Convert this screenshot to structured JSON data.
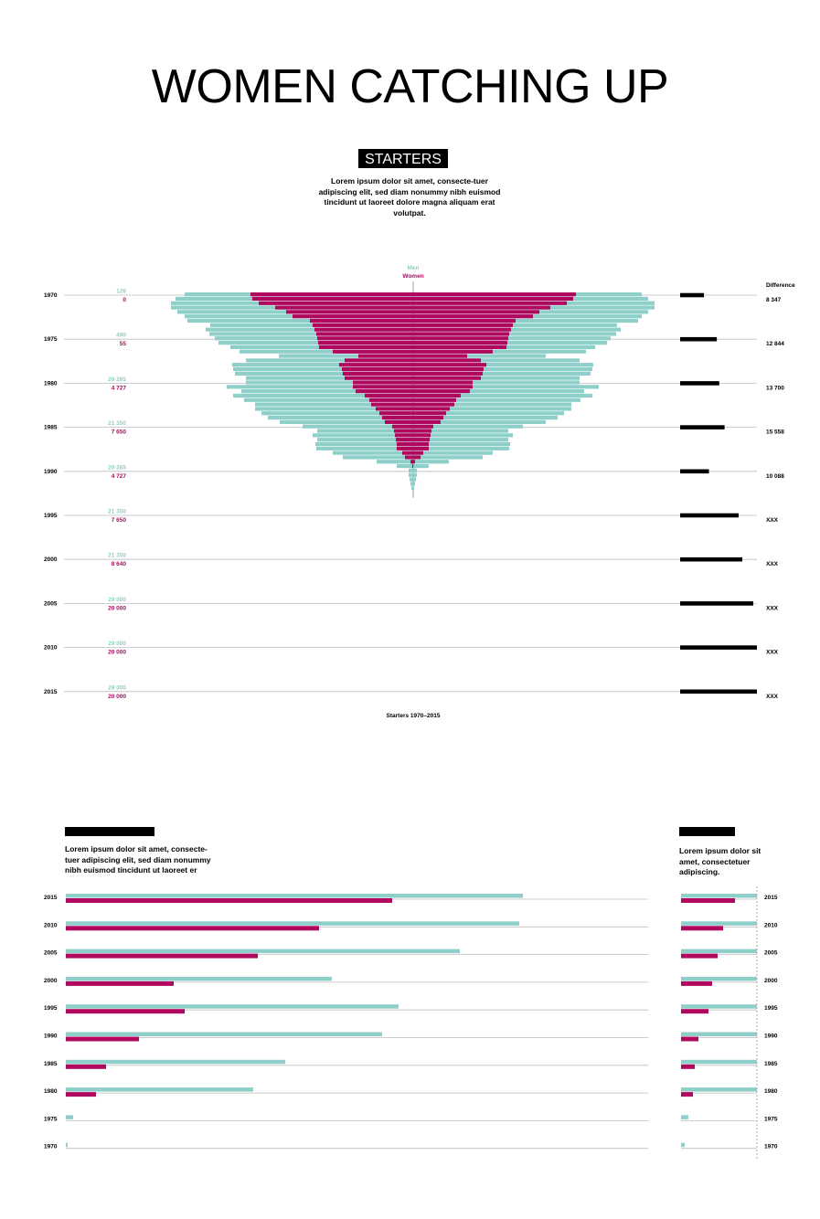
{
  "title": "WOMEN CATCHING UP",
  "starters": {
    "label": "STARTERS",
    "intro": "Lorem ipsum dolor sit amet, consecte-tuer adipiscing elit, sed diam nonummy nibh euismod tincidunt ut laoreet dolore magna aliquam erat volutpat.",
    "legend_men": "Men",
    "legend_women": "Women",
    "difference_header": "Difference",
    "caption": "Starters 1970–2015"
  },
  "colors": {
    "men": "#8ecfc9",
    "women": "#b0085f",
    "rule": "#bdbdbd",
    "ink": "#000000"
  },
  "lower": {
    "left_text": "Lorem ipsum dolor sit amet, consecte-tuer adipiscing elit, sed diam nonummy nibh euismod tincidunt ut laoreet er",
    "right_text": "Lorem ipsum dolor sit amet, consectetuer adipiscing."
  },
  "chart_data": [
    {
      "type": "bar",
      "orientation": "butterfly",
      "ylabel": "",
      "year_ticks": [
        "1970",
        "1975",
        "1980",
        "1985",
        "1990",
        "1995",
        "2000",
        "2005",
        "2010",
        "2015"
      ],
      "year_labels": [
        {
          "year": "1970",
          "men": "126",
          "women": "0",
          "difference": "8 347"
        },
        {
          "year": "1975",
          "men": "490",
          "women": "55",
          "difference": "12 844"
        },
        {
          "year": "1980",
          "men": "20 285",
          "women": "4 727",
          "difference": "13 700"
        },
        {
          "year": "1985",
          "men": "21 350",
          "women": "7 650",
          "difference": "15 558"
        },
        {
          "year": "1990",
          "men": "20 285",
          "women": "4 727",
          "difference": "10 088"
        },
        {
          "year": "1995",
          "men": "21 350",
          "women": "7 650",
          "difference": "XXX"
        },
        {
          "year": "2000",
          "men": "21 350",
          "women": "8 640",
          "difference": "XXX"
        },
        {
          "year": "2005",
          "men": "29 000",
          "women": "20 000",
          "difference": "XXX"
        },
        {
          "year": "2010",
          "men": "29 000",
          "women": "20 000",
          "difference": "XXX"
        },
        {
          "year": "2015",
          "men": "29 000",
          "women": "20 000",
          "difference": "XXX"
        }
      ],
      "series": [
        {
          "name": "Men",
          "values": [
            [
              250,
              250
            ],
            [
              260,
              257
            ],
            [
              265,
              264
            ],
            [
              265,
              264
            ],
            [
              258,
              257
            ],
            [
              250,
              250
            ],
            [
              247,
              246
            ],
            [
              222,
              223
            ],
            [
              227,
              227
            ],
            [
              223,
              222
            ],
            [
              217,
              216
            ],
            [
              213,
              212
            ],
            [
              200,
              199
            ],
            [
              190,
              189
            ],
            [
              147,
              145
            ],
            [
              183,
              182
            ],
            [
              198,
              197
            ],
            [
              197,
              196
            ],
            [
              195,
              194
            ],
            [
              183,
              182
            ],
            [
              183,
              182
            ],
            [
              204,
              203
            ],
            [
              188,
              187
            ],
            [
              197,
              196
            ],
            [
              185,
              183
            ],
            [
              173,
              173
            ],
            [
              173,
              173
            ],
            [
              166,
              165
            ],
            [
              159,
              158
            ],
            [
              146,
              145
            ],
            [
              121,
              120
            ],
            [
              105,
              104
            ],
            [
              110,
              109
            ],
            [
              105,
              104
            ],
            [
              107,
              106
            ],
            [
              106,
              105
            ],
            [
              88,
              87
            ],
            [
              77,
              76
            ],
            [
              40,
              39
            ],
            [
              18,
              17
            ],
            [
              5,
              4
            ],
            [
              5,
              4
            ],
            [
              4,
              3
            ],
            [
              3,
              2
            ],
            [
              2,
              1
            ]
          ]
        },
        {
          "name": "Women",
          "values": [
            [
              178,
              178
            ],
            [
              176,
              175
            ],
            [
              169,
              168
            ],
            [
              151,
              150
            ],
            [
              139,
              138
            ],
            [
              132,
              131
            ],
            [
              113,
              112
            ],
            [
              110,
              109
            ],
            [
              108,
              107
            ],
            [
              106,
              105
            ],
            [
              105,
              104
            ],
            [
              104,
              103
            ],
            [
              103,
              102
            ],
            [
              88,
              87
            ],
            [
              60,
              59
            ],
            [
              75,
              74
            ],
            [
              81,
              80
            ],
            [
              78,
              77
            ],
            [
              77,
              76
            ],
            [
              75,
              74
            ],
            [
              66,
              65
            ],
            [
              66,
              65
            ],
            [
              63,
              62
            ],
            [
              53,
              52
            ],
            [
              48,
              47
            ],
            [
              46,
              45
            ],
            [
              41,
              40
            ],
            [
              37,
              36
            ],
            [
              34,
              33
            ],
            [
              31,
              30
            ],
            [
              23,
              22
            ],
            [
              21,
              20
            ],
            [
              20,
              19
            ],
            [
              19,
              18
            ],
            [
              18,
              17
            ],
            [
              18,
              17
            ],
            [
              12,
              11
            ],
            [
              9,
              8
            ],
            [
              3,
              2
            ],
            [
              1,
              0
            ],
            [
              0,
              0
            ],
            [
              0,
              0
            ],
            [
              0,
              0
            ],
            [
              0,
              0
            ],
            [
              0,
              0
            ]
          ]
        }
      ],
      "difference": [
        8347,
        12844,
        13700,
        15558,
        10088,
        null,
        null,
        null,
        null,
        null
      ]
    },
    {
      "type": "bar",
      "orientation": "horizontal",
      "categories": [
        "2015",
        "2010",
        "2005",
        "2000",
        "1995",
        "1990",
        "1985",
        "1980",
        "1975",
        "1970"
      ],
      "series": [
        {
          "name": "Men",
          "values": [
            500,
            496,
            431,
            291,
            364,
            346,
            240,
            205,
            8,
            2
          ]
        },
        {
          "name": "Women",
          "values": [
            357,
            277,
            210,
            118,
            130,
            80,
            44,
            33,
            0,
            0
          ]
        }
      ],
      "xlim": [
        0,
        637
      ]
    },
    {
      "type": "bar",
      "orientation": "horizontal",
      "categories": [
        "2015",
        "2010",
        "2005",
        "2000",
        "1995",
        "1990",
        "1985",
        "1980",
        "1975",
        "1970"
      ],
      "series": [
        {
          "name": "Men",
          "values": [
            83,
            83,
            83,
            83,
            83,
            83,
            83,
            83,
            8,
            4
          ]
        },
        {
          "name": "Women",
          "values": [
            59,
            46,
            40,
            34,
            30,
            19,
            15,
            13,
            0,
            0
          ]
        }
      ],
      "xlim": [
        0,
        83
      ]
    }
  ]
}
